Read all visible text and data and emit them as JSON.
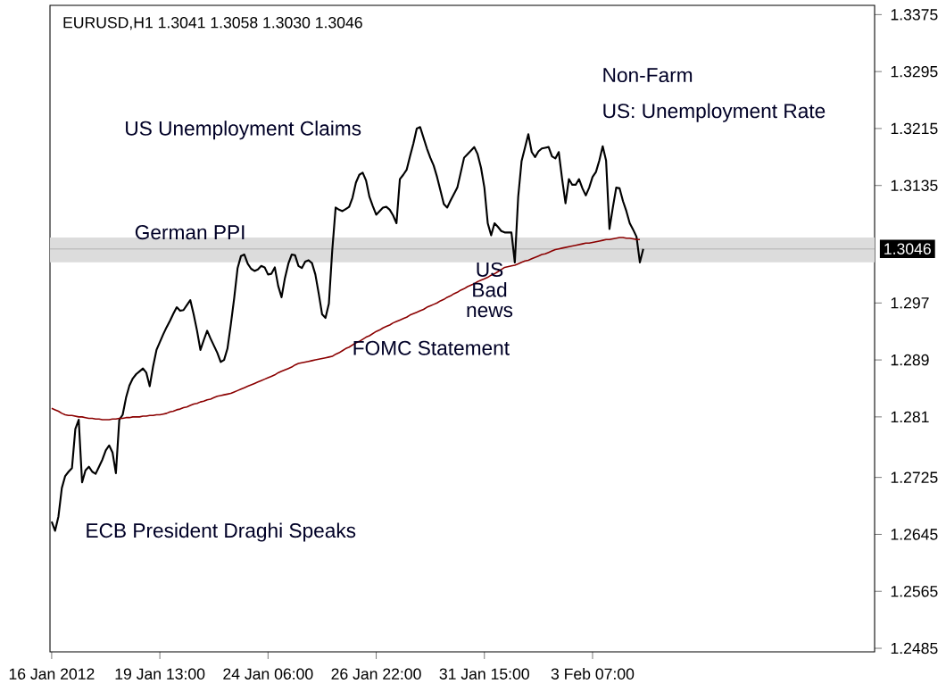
{
  "chart_data": {
    "type": "line",
    "title": "EURUSD,H1  1.3041 1.3058 1.3030 1.3046",
    "categories": [
      "16 Jan 2012",
      null,
      null,
      null,
      null,
      null,
      null,
      null,
      null,
      null,
      null,
      null,
      null,
      null,
      null,
      null,
      null,
      null,
      null,
      null,
      null,
      null,
      null,
      null,
      null,
      null,
      null,
      null,
      null,
      null,
      null,
      null,
      "19 Jan 13:00",
      null,
      null,
      null,
      null,
      null,
      null,
      null,
      null,
      null,
      null,
      null,
      null,
      null,
      null,
      null,
      null,
      null,
      null,
      null,
      null,
      null,
      null,
      null,
      null,
      null,
      null,
      null,
      null,
      null,
      null,
      null,
      "24 Jan 06:00",
      null,
      null,
      null,
      null,
      null,
      null,
      null,
      null,
      null,
      null,
      null,
      null,
      null,
      null,
      null,
      null,
      null,
      null,
      null,
      null,
      null,
      null,
      null,
      null,
      null,
      null,
      null,
      null,
      null,
      null,
      null,
      "26 Jan 22:00",
      null,
      null,
      null,
      null,
      null,
      null,
      null,
      null,
      null,
      null,
      null,
      null,
      null,
      null,
      null,
      null,
      null,
      null,
      null,
      null,
      null,
      null,
      null,
      null,
      null,
      null,
      null,
      null,
      null,
      null,
      null,
      "31 Jan 15:00",
      null,
      null,
      null,
      null,
      null,
      null,
      null,
      null,
      null,
      null,
      null,
      null,
      null,
      null,
      null,
      null,
      null,
      null,
      null,
      null,
      null,
      null,
      null,
      null,
      null,
      null,
      null,
      null,
      null,
      null,
      null,
      "3 Feb 07:00",
      null,
      null,
      null,
      null,
      null,
      null,
      null,
      null,
      null,
      null,
      null,
      null,
      null,
      null,
      null
    ],
    "ylim": [
      1.248,
      1.3388
    ],
    "yticks": [
      1.3375,
      1.3295,
      1.3215,
      1.3135,
      1.297,
      1.289,
      1.281,
      1.2725,
      1.2645,
      1.2565,
      1.2485
    ],
    "grid": false,
    "marker": "none",
    "line_style": "solid",
    "series": [
      {
        "color": "#000000",
        "values": [
          1.2663,
          1.265,
          1.267,
          1.271,
          1.2727,
          1.2733,
          1.2738,
          1.2793,
          1.2806,
          1.2718,
          1.2735,
          1.274,
          1.2733,
          1.273,
          1.274,
          1.275,
          1.2763,
          1.277,
          1.276,
          1.2731,
          1.2806,
          1.2813,
          1.2837,
          1.2854,
          1.2864,
          1.287,
          1.2874,
          1.2878,
          1.2872,
          1.2853,
          1.2881,
          1.2904,
          1.2915,
          1.2926,
          1.2936,
          1.2945,
          1.2955,
          1.2964,
          1.2959,
          1.296,
          1.2967,
          1.2974,
          1.2954,
          1.2931,
          1.2904,
          1.2918,
          1.2931,
          1.292,
          1.291,
          1.29,
          1.2887,
          1.289,
          1.2906,
          1.294,
          1.2977,
          1.3019,
          1.3036,
          1.3038,
          1.3025,
          1.3018,
          1.3015,
          1.3017,
          1.3022,
          1.302,
          1.301,
          1.3011,
          1.302,
          1.2994,
          1.2978,
          1.3005,
          1.3025,
          1.3038,
          1.3037,
          1.3022,
          1.3019,
          1.3028,
          1.303,
          1.3026,
          1.301,
          1.2983,
          1.2954,
          1.2949,
          1.2969,
          1.3044,
          1.3104,
          1.3101,
          1.3099,
          1.3102,
          1.3105,
          1.3118,
          1.3139,
          1.315,
          1.3153,
          1.3142,
          1.3119,
          1.3106,
          1.3094,
          1.3099,
          1.3104,
          1.3105,
          1.3101,
          1.3093,
          1.3082,
          1.3144,
          1.315,
          1.3157,
          1.3176,
          1.3194,
          1.3215,
          1.3217,
          1.3202,
          1.3187,
          1.3174,
          1.3163,
          1.3147,
          1.3128,
          1.3109,
          1.3104,
          1.3114,
          1.3123,
          1.3132,
          1.3153,
          1.3174,
          1.3179,
          1.3184,
          1.3189,
          1.3179,
          1.316,
          1.3132,
          1.3082,
          1.3065,
          1.3082,
          1.3077,
          1.3071,
          1.3069,
          1.3069,
          1.3069,
          1.3027,
          1.3119,
          1.3169,
          1.3188,
          1.3207,
          1.3182,
          1.3175,
          1.3183,
          1.3187,
          1.3188,
          1.3189,
          1.3176,
          1.3173,
          1.3182,
          1.3144,
          1.311,
          1.3144,
          1.3136,
          1.3136,
          1.3144,
          1.3131,
          1.3121,
          1.3132,
          1.3147,
          1.3154,
          1.317,
          1.319,
          1.317,
          1.3074,
          1.3104,
          1.3132,
          1.3131,
          1.3113,
          1.3099,
          1.3082,
          1.3073,
          1.3063,
          1.3027,
          1.3046
        ]
      },
      {
        "color": "#8b0000",
        "values": [
          1.2822,
          1.282,
          1.2818,
          1.2815,
          1.2813,
          1.2812,
          1.2812,
          1.2811,
          1.281,
          1.281,
          1.2809,
          1.2808,
          1.2808,
          1.2807,
          1.2807,
          1.2806,
          1.2806,
          1.2806,
          1.2807,
          1.2807,
          1.2808,
          1.2808,
          1.2809,
          1.2809,
          1.281,
          1.281,
          1.281,
          1.2811,
          1.2811,
          1.2812,
          1.2812,
          1.2813,
          1.2813,
          1.2814,
          1.2815,
          1.2817,
          1.2818,
          1.282,
          1.2821,
          1.2823,
          1.2824,
          1.2826,
          1.2828,
          1.2829,
          1.2831,
          1.2832,
          1.2834,
          1.2835,
          1.2837,
          1.2839,
          1.284,
          1.2841,
          1.2842,
          1.2843,
          1.2845,
          1.2847,
          1.2849,
          1.2851,
          1.2853,
          1.2855,
          1.2857,
          1.2859,
          1.2861,
          1.2863,
          1.2865,
          1.2867,
          1.2869,
          1.2872,
          1.2874,
          1.2876,
          1.2878,
          1.288,
          1.2883,
          1.2885,
          1.2886,
          1.2887,
          1.2888,
          1.2889,
          1.289,
          1.2891,
          1.2892,
          1.2893,
          1.2894,
          1.2895,
          1.2898,
          1.29,
          1.2903,
          1.2906,
          1.2908,
          1.2911,
          1.2914,
          1.2916,
          1.2919,
          1.2922,
          1.2924,
          1.2927,
          1.293,
          1.2932,
          1.2935,
          1.2937,
          1.2939,
          1.2942,
          1.2944,
          1.2946,
          1.2948,
          1.295,
          1.2953,
          1.2955,
          1.2957,
          1.2959,
          1.2961,
          1.2964,
          1.2966,
          1.2968,
          1.297,
          1.2973,
          1.2975,
          1.2978,
          1.298,
          1.2983,
          1.2985,
          1.2988,
          1.299,
          1.2993,
          1.2995,
          1.2997,
          1.3,
          1.3002,
          1.3004,
          1.3006,
          1.3009,
          1.3011,
          1.3014,
          1.3017,
          1.302,
          1.3021,
          1.3022,
          1.3023,
          1.3025,
          1.3027,
          1.3029,
          1.303,
          1.3032,
          1.3034,
          1.3036,
          1.3038,
          1.3039,
          1.3041,
          1.3043,
          1.3045,
          1.3046,
          1.3047,
          1.3048,
          1.3049,
          1.305,
          1.3051,
          1.3052,
          1.3053,
          1.3054,
          1.3054,
          1.3055,
          1.3056,
          1.3057,
          1.3058,
          1.3059,
          1.3059,
          1.306,
          1.3061,
          1.3062,
          1.3062,
          1.3061,
          1.3061,
          1.306,
          1.3059,
          1.3059,
          null
        ]
      }
    ],
    "ref_lines": [
      {
        "axis": "y",
        "value": 1.3046,
        "label": "1.3046",
        "color": "#c0c0c0"
      }
    ],
    "bands": [
      {
        "axis": "y",
        "from": 1.3027,
        "to": 1.3062,
        "color": "#dcdcdc"
      }
    ],
    "annotations": [
      "US Unemployment Claims",
      "German PPI",
      "US Bad news",
      "FOMC Statement",
      "ECB President Draghi Speaks",
      "Non-Farm",
      "US: Unemployment Rate"
    ]
  }
}
